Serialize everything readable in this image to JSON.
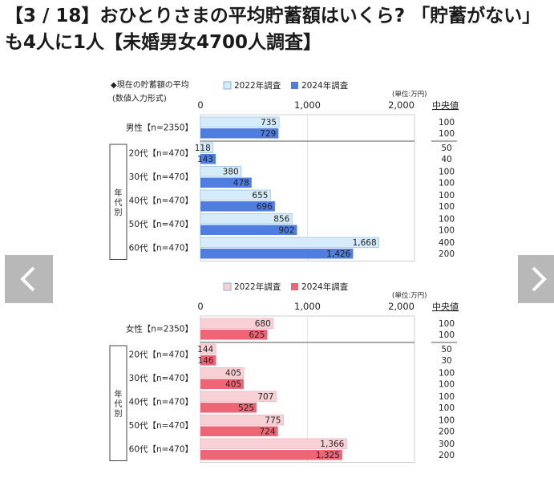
{
  "headline": "【3 / 18】おひとりさまの平均貯蓄額はいくら? 「貯蓄がない」も4人に1人【未婚男女4700人調査】",
  "chart_data": [
    {
      "type": "bar",
      "orientation": "horizontal",
      "title": "◆現在の貯蓄額の平均",
      "subtitle": "(数値入力形式)",
      "unit_note": "(単位:万円)",
      "median_header": "中央値",
      "group_label": "年代別",
      "ylim": [
        0,
        2000
      ],
      "ticks": [
        0,
        1000,
        2000
      ],
      "tick_labels": [
        "0",
        "1,000",
        "2,000"
      ],
      "legend_position": "top",
      "categories": [
        "男性【n=2350】",
        "20代【n=470】",
        "30代【n=470】",
        "40代【n=470】",
        "50代【n=470】",
        "60代【n=470】"
      ],
      "series": [
        {
          "name": "2022年調査",
          "color": "#d6ecfa",
          "values": [
            735,
            118,
            380,
            655,
            856,
            1668
          ],
          "labels": [
            "735",
            "118",
            "380",
            "655",
            "856",
            "1,668"
          ],
          "medians": [
            "100",
            "50",
            "100",
            "100",
            "100",
            "400"
          ]
        },
        {
          "name": "2024年調査",
          "color": "#4f7ee0",
          "values": [
            729,
            143,
            478,
            696,
            902,
            1426
          ],
          "labels": [
            "729",
            "143",
            "478",
            "696",
            "902",
            "1,426"
          ],
          "medians": [
            "100",
            "40",
            "100",
            "100",
            "100",
            "200"
          ]
        }
      ]
    },
    {
      "type": "bar",
      "orientation": "horizontal",
      "unit_note": "(単位:万円)",
      "median_header": "中央値",
      "group_label": "年代別",
      "ylim": [
        0,
        2000
      ],
      "ticks": [
        0,
        1000,
        2000
      ],
      "tick_labels": [
        "0",
        "1,000",
        "2,000"
      ],
      "legend_position": "top",
      "categories": [
        "女性【n=2350】",
        "20代【n=470】",
        "30代【n=470】",
        "40代【n=470】",
        "50代【n=470】",
        "60代【n=470】"
      ],
      "series": [
        {
          "name": "2022年調査",
          "color": "#f7d1d6",
          "values": [
            680,
            144,
            405,
            707,
            775,
            1366
          ],
          "labels": [
            "680",
            "144",
            "405",
            "707",
            "775",
            "1,366"
          ],
          "medians": [
            "100",
            "50",
            "100",
            "100",
            "100",
            "300"
          ]
        },
        {
          "name": "2024年調査",
          "color": "#ee6676",
          "values": [
            625,
            146,
            405,
            525,
            724,
            1325
          ],
          "labels": [
            "625",
            "146",
            "405",
            "525",
            "724",
            "1,325"
          ],
          "medians": [
            "100",
            "30",
            "100",
            "100",
            "200",
            "200"
          ]
        }
      ]
    }
  ],
  "nav": {
    "prev_icon": "chevron-left-icon",
    "next_icon": "chevron-right-icon"
  }
}
